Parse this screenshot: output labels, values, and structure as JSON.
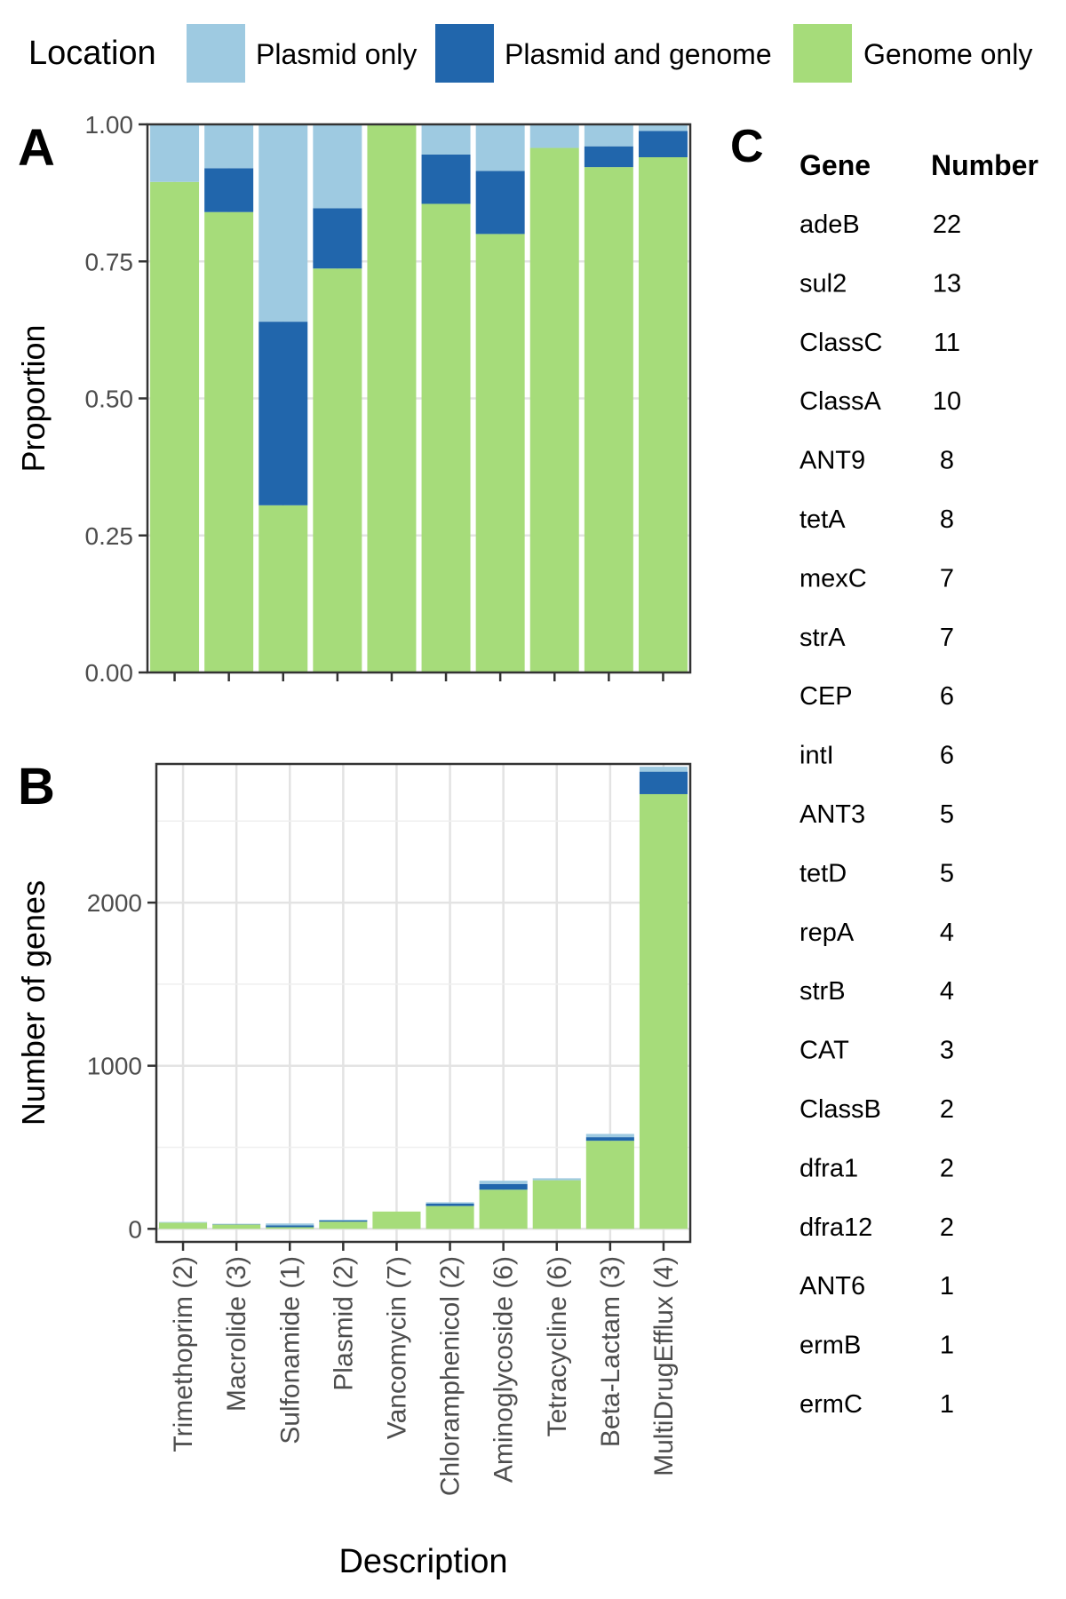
{
  "legend": {
    "title": "Location",
    "entries": [
      {
        "label": "Plasmid only",
        "color": "#9ecae1"
      },
      {
        "label": "Plasmid and genome",
        "color": "#2166ac"
      },
      {
        "label": "Genome only",
        "color": "#a6dc7a"
      }
    ]
  },
  "panels": {
    "a": "A",
    "b": "B",
    "c": "C"
  },
  "chart_data": [
    {
      "panel": "A",
      "type": "bar",
      "stacked": true,
      "ylabel": "Proportion",
      "xlabel": "",
      "ylim": [
        0,
        1
      ],
      "yticks": [
        "0.00",
        "0.25",
        "0.50",
        "0.75",
        "1.00"
      ],
      "ytick_values": [
        0,
        0.25,
        0.5,
        0.75,
        1
      ],
      "grid": true,
      "categories": [
        "Trimethoprim (2)",
        "Macrolide (3)",
        "Sulfonamide (1)",
        "Plasmid (2)",
        "Vancomycin (7)",
        "Chloramphenicol (2)",
        "Aminoglycoside (6)",
        "Tetracycline (6)",
        "Beta-Lactam (3)",
        "MultiDrugEfflux (4)"
      ],
      "series": [
        {
          "name": "Genome only",
          "color": "#a6dc7a",
          "values": [
            0.895,
            0.84,
            0.305,
            0.737,
            1.0,
            0.855,
            0.8,
            0.957,
            0.922,
            0.94
          ]
        },
        {
          "name": "Plasmid and genome",
          "color": "#2166ac",
          "values": [
            0.0,
            0.08,
            0.335,
            0.11,
            0.0,
            0.09,
            0.115,
            0.0,
            0.038,
            0.048
          ]
        },
        {
          "name": "Plasmid only",
          "color": "#9ecae1",
          "values": [
            0.105,
            0.08,
            0.36,
            0.153,
            0.0,
            0.055,
            0.085,
            0.043,
            0.04,
            0.012
          ]
        }
      ]
    },
    {
      "panel": "B",
      "type": "bar",
      "stacked": true,
      "ylabel": "Number of genes",
      "xlabel": "Description",
      "ylim": [
        -80,
        2850
      ],
      "yticks": [
        "0",
        "1000",
        "2000"
      ],
      "ytick_values": [
        0,
        1000,
        2000
      ],
      "grid": true,
      "categories": [
        "Trimethoprim (2)",
        "Macrolide (3)",
        "Sulfonamide (1)",
        "Plasmid (2)",
        "Vancomycin (7)",
        "Chloramphenicol (2)",
        "Aminoglycoside (6)",
        "Tetracycline (6)",
        "Beta-Lactam (3)",
        "MultiDrugEfflux (4)"
      ],
      "series": [
        {
          "name": "Genome only",
          "color": "#a6dc7a",
          "values": [
            38,
            26,
            10,
            44,
            106,
            140,
            240,
            298,
            540,
            2665
          ]
        },
        {
          "name": "Plasmid and genome",
          "color": "#2166ac",
          "values": [
            0,
            2,
            11,
            7,
            0,
            15,
            35,
            0,
            22,
            138
          ]
        },
        {
          "name": "Plasmid only",
          "color": "#9ecae1",
          "values": [
            4,
            3,
            12,
            5,
            0,
            8,
            20,
            12,
            20,
            30
          ]
        }
      ]
    },
    {
      "panel": "C",
      "type": "table",
      "columns": [
        "Gene",
        "Number"
      ],
      "rows": [
        [
          "adeB",
          "22"
        ],
        [
          "sul2",
          "13"
        ],
        [
          "ClassC",
          "11"
        ],
        [
          "ClassA",
          "10"
        ],
        [
          "ANT9",
          "8"
        ],
        [
          "tetA",
          "8"
        ],
        [
          "mexC",
          "7"
        ],
        [
          "strA",
          "7"
        ],
        [
          "CEP",
          "6"
        ],
        [
          "intI",
          "6"
        ],
        [
          "ANT3",
          "5"
        ],
        [
          "tetD",
          "5"
        ],
        [
          "repA",
          "4"
        ],
        [
          "strB",
          "4"
        ],
        [
          "CAT",
          "3"
        ],
        [
          "ClassB",
          "2"
        ],
        [
          "dfra1",
          "2"
        ],
        [
          "dfra12",
          "2"
        ],
        [
          "ANT6",
          "1"
        ],
        [
          "ermB",
          "1"
        ],
        [
          "ermC",
          "1"
        ]
      ]
    }
  ]
}
